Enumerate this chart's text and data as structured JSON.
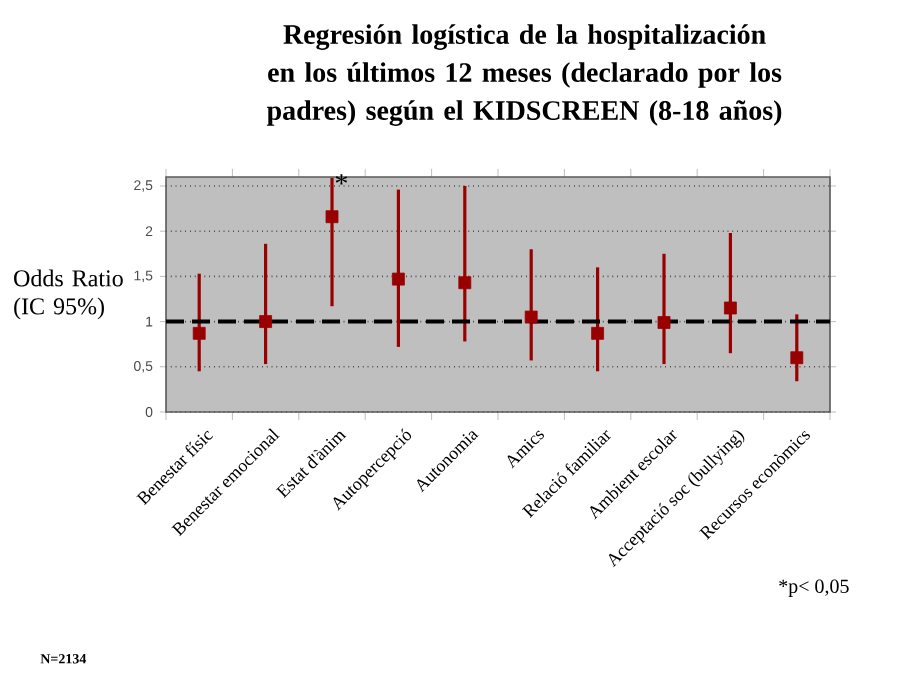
{
  "chart_data": {
    "type": "scatter",
    "title": "Regresión logística de la hospitalización en los últimos 12 meses (declarado por los padres) según el KIDSCREEN (8-18 años)",
    "ylabel": "Odds Ratio (IC 95%)",
    "categories": [
      "Benestar físic",
      "Benestar emocional",
      "Estat d'ànim",
      "Autopercepció",
      "Autonomia",
      "Amics",
      "Relació familiar",
      "Ambient escolar",
      "Acceptació soc (bullying)",
      "Recursos econòmics"
    ],
    "values": [
      0.87,
      1.0,
      2.16,
      1.47,
      1.43,
      1.05,
      0.87,
      0.99,
      1.15,
      0.6
    ],
    "errors": [
      [
        0.45,
        1.53
      ],
      [
        0.53,
        1.86
      ],
      [
        1.17,
        2.59
      ],
      [
        0.72,
        2.46
      ],
      [
        0.78,
        2.5
      ],
      [
        0.57,
        1.8
      ],
      [
        0.45,
        1.6
      ],
      [
        0.53,
        1.75
      ],
      [
        0.65,
        1.98
      ],
      [
        0.34,
        1.08
      ]
    ],
    "color": "#990000",
    "marker": "square",
    "ylim": [
      0,
      2.6
    ],
    "yticks": [
      0,
      {
        "value": 0.5,
        "label": "0,5"
      },
      1,
      {
        "value": 1.5,
        "label": "1,5"
      },
      2,
      {
        "value": 2.5,
        "label": "2,5"
      }
    ],
    "grid": "y",
    "ref_lines": [
      {
        "axis": "y",
        "value": 1,
        "color": "#000000",
        "line_style": "dashed"
      }
    ],
    "annotations": [
      {
        "text": "*",
        "x": "Estat d'ànim",
        "y": 2.4
      },
      "*p< 0,05",
      "N=2134"
    ]
  }
}
